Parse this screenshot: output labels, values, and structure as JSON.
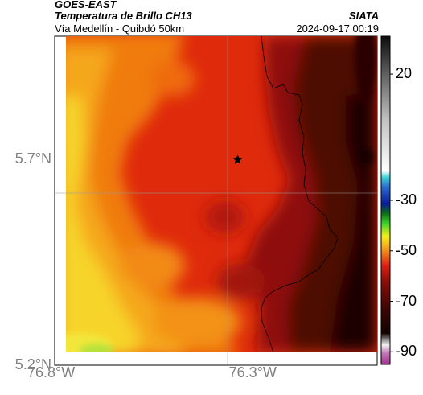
{
  "header": {
    "satellite": "GOES-EAST",
    "product": "Temperatura de Brillo CH13",
    "region": "Vía Medellín - Quibdó 50km",
    "agency": "SIATA",
    "timestamp": "2024-09-17 00:19"
  },
  "map": {
    "lon_range": [
      -76.8,
      -76.0
    ],
    "lat_range": [
      5.2,
      6.0
    ],
    "lat_ticks": [
      {
        "value": 5.7,
        "label": "5.7°N"
      },
      {
        "value": 5.2,
        "label": "5.2°N"
      }
    ],
    "lon_ticks": [
      {
        "value": -76.8,
        "label": "76.8°W"
      },
      {
        "value": -76.3,
        "label": "76.3°W"
      }
    ],
    "gridlines": true,
    "marker": {
      "name": "star",
      "lon": -76.34,
      "lat": 5.7
    }
  },
  "colorbar": {
    "range": [
      -95,
      35
    ],
    "ticks": [
      {
        "value": 20,
        "label": "20"
      },
      {
        "value": -30,
        "label": "-30"
      },
      {
        "value": -50,
        "label": "-50"
      },
      {
        "value": -70,
        "label": "-70"
      },
      {
        "value": -90,
        "label": "-90"
      }
    ]
  },
  "colors": {
    "warm_yellow": "#f2d32a",
    "orange": "#f07c0e",
    "red": "#df2a0c",
    "dark_red": "#5b0a06",
    "near_black": "#1c0302"
  }
}
